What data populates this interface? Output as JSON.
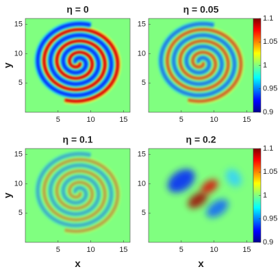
{
  "chart_data": [
    {
      "type": "heatmap",
      "title": "η = 0",
      "ylabel": "y",
      "colormap": "jet",
      "xlim": [
        0,
        16
      ],
      "ylim": [
        0,
        16
      ],
      "xticks": [
        5,
        10,
        15
      ],
      "yticks": [
        5,
        10,
        15
      ]
    },
    {
      "type": "heatmap",
      "title": "η = 0.05",
      "colormap": "jet",
      "xlim": [
        0,
        16
      ],
      "ylim": [
        0,
        16
      ],
      "xticks": [
        5,
        10,
        15
      ],
      "yticks": [
        5,
        10,
        15
      ],
      "colorbar": {
        "lim": [
          0.9,
          1.1
        ],
        "ticks": [
          0.9,
          0.95,
          1,
          1.05,
          1.1
        ]
      }
    },
    {
      "type": "heatmap",
      "title": "η = 0.1",
      "xlabel": "x",
      "ylabel": "y",
      "colormap": "jet",
      "xlim": [
        0,
        16
      ],
      "ylim": [
        0,
        16
      ],
      "xticks": [
        5,
        10,
        15
      ],
      "yticks": [
        5,
        10,
        15
      ]
    },
    {
      "type": "heatmap",
      "title": "η = 0.2",
      "xlabel": "x",
      "colormap": "jet",
      "xlim": [
        0,
        16
      ],
      "ylim": [
        0,
        16
      ],
      "xticks": [
        5,
        10,
        15
      ],
      "yticks": [
        5,
        10,
        15
      ],
      "colorbar": {
        "lim": [
          0.9,
          1.1
        ],
        "ticks": [
          0.9,
          0.95,
          1,
          1.05,
          1.1
        ]
      }
    }
  ]
}
